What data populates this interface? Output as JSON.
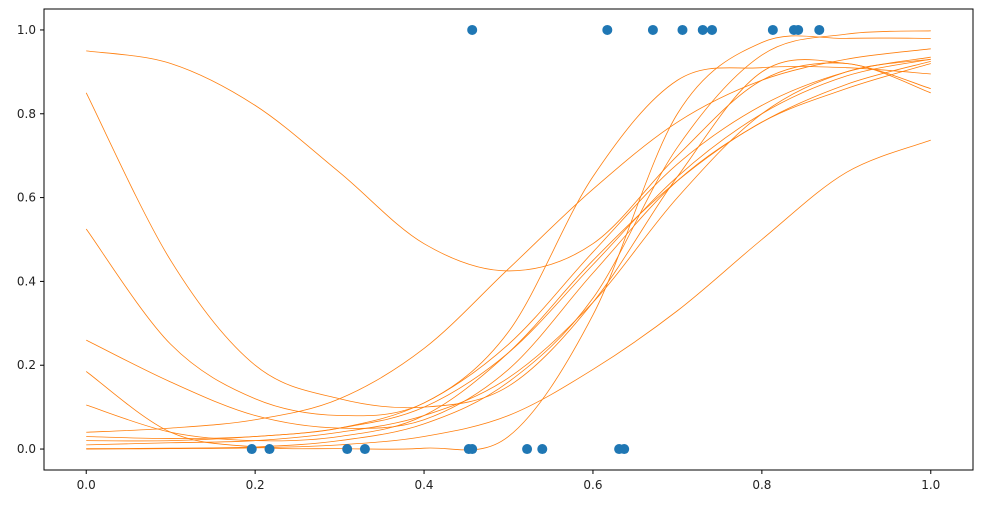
{
  "chart_data": {
    "type": "scatter",
    "title": "",
    "xlabel": "",
    "ylabel": "",
    "xlim": [
      -0.05,
      1.05
    ],
    "ylim": [
      -0.05,
      1.05
    ],
    "xticks": [
      "0.0",
      "0.2",
      "0.4",
      "0.6",
      "0.8",
      "1.0"
    ],
    "yticks": [
      "0.0",
      "0.2",
      "0.4",
      "0.6",
      "0.8",
      "1.0"
    ],
    "xtick_values": [
      0.0,
      0.2,
      0.4,
      0.6,
      0.8,
      1.0
    ],
    "ytick_values": [
      0.0,
      0.2,
      0.4,
      0.6,
      0.8,
      1.0
    ],
    "grid": false,
    "points": {
      "color": "#1f77b4",
      "x": [
        0.196,
        0.217,
        0.309,
        0.33,
        0.453,
        0.457,
        0.522,
        0.54,
        0.631,
        0.637,
        0.457,
        0.617,
        0.671,
        0.706,
        0.73,
        0.741,
        0.813,
        0.838,
        0.843,
        0.868
      ],
      "y": [
        0,
        0,
        0,
        0,
        0,
        0,
        0,
        0,
        0,
        0,
        1,
        1,
        1,
        1,
        1,
        1,
        1,
        1,
        1,
        1
      ]
    },
    "curves": {
      "color": "#ff7f0e",
      "x": [
        0.0,
        0.1,
        0.2,
        0.3,
        0.4,
        0.5,
        0.6,
        0.7,
        0.8,
        0.9,
        1.0
      ],
      "series": [
        {
          "y": [
            0.95,
            0.92,
            0.82,
            0.66,
            0.49,
            0.425,
            0.49,
            0.7,
            0.88,
            0.92,
            0.85
          ]
        },
        {
          "y": [
            0.85,
            0.45,
            0.2,
            0.12,
            0.1,
            0.15,
            0.35,
            0.65,
            0.9,
            0.92,
            0.86
          ]
        },
        {
          "y": [
            0.525,
            0.25,
            0.12,
            0.08,
            0.11,
            0.28,
            0.65,
            0.88,
            0.91,
            0.91,
            0.895
          ]
        },
        {
          "y": [
            0.26,
            0.16,
            0.08,
            0.05,
            0.07,
            0.19,
            0.42,
            0.64,
            0.78,
            0.87,
            0.925
          ]
        },
        {
          "y": [
            0.185,
            0.04,
            0.005,
            0.001,
            0.002,
            0.03,
            0.32,
            0.8,
            0.97,
            0.98,
            0.98
          ]
        },
        {
          "y": [
            0.105,
            0.04,
            0.02,
            0.03,
            0.08,
            0.23,
            0.45,
            0.64,
            0.78,
            0.86,
            0.92
          ]
        },
        {
          "y": [
            0.04,
            0.05,
            0.07,
            0.12,
            0.24,
            0.43,
            0.62,
            0.78,
            0.88,
            0.93,
            0.955
          ]
        },
        {
          "y": [
            0.03,
            0.025,
            0.03,
            0.05,
            0.1,
            0.23,
            0.44,
            0.65,
            0.8,
            0.89,
            0.93
          ]
        },
        {
          "y": [
            0.02,
            0.02,
            0.03,
            0.05,
            0.11,
            0.25,
            0.47,
            0.68,
            0.82,
            0.9,
            0.935
          ]
        },
        {
          "y": [
            0.01,
            0.015,
            0.02,
            0.04,
            0.08,
            0.17,
            0.35,
            0.6,
            0.8,
            0.9,
            0.93
          ]
        },
        {
          "y": [
            0.001,
            0.002,
            0.005,
            0.02,
            0.06,
            0.16,
            0.36,
            0.72,
            0.94,
            0.99,
            0.998
          ]
        },
        {
          "y": [
            0.0,
            0.001,
            0.003,
            0.01,
            0.03,
            0.08,
            0.19,
            0.33,
            0.5,
            0.66,
            0.737
          ]
        }
      ]
    }
  }
}
